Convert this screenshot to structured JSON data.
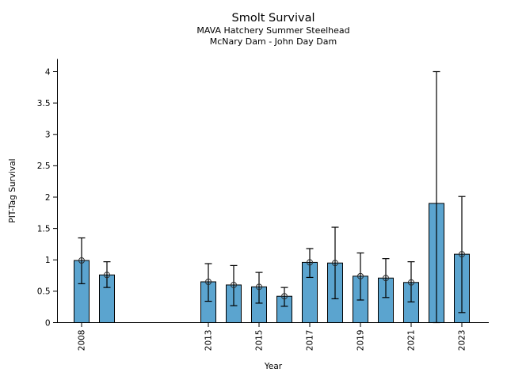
{
  "chart_data": {
    "type": "bar",
    "title": "Smolt Survival",
    "subtitle1": "MAVA Hatchery Summer Steelhead",
    "subtitle2": "McNary Dam - John Day Dam",
    "xlabel": "Year",
    "ylabel": "PIT-Tag Survival",
    "ylim": [
      0,
      4.2
    ],
    "xlim": [
      2007.05,
      2024.1
    ],
    "grid": false,
    "legend": "none",
    "bar_color": "#5BA4CF",
    "bar_edge_color": "#000000",
    "error_color": "#000000",
    "marker_style": "open-circle",
    "yticks": [
      {
        "value": 0,
        "label": "0"
      },
      {
        "value": 0.5,
        "label": "0.5"
      },
      {
        "value": 1,
        "label": "1"
      },
      {
        "value": 1.5,
        "label": "1.5"
      },
      {
        "value": 2,
        "label": "2"
      },
      {
        "value": 2.5,
        "label": "2.5"
      },
      {
        "value": 3,
        "label": "3"
      },
      {
        "value": 3.5,
        "label": "3.5"
      },
      {
        "value": 4,
        "label": "4"
      }
    ],
    "xticks": [
      {
        "value": 2008,
        "label": "2008"
      },
      {
        "value": 2013,
        "label": "2013"
      },
      {
        "value": 2015,
        "label": "2015"
      },
      {
        "value": 2017,
        "label": "2017"
      },
      {
        "value": 2019,
        "label": "2019"
      },
      {
        "value": 2021,
        "label": "2021"
      },
      {
        "value": 2023,
        "label": "2023"
      }
    ],
    "points": [
      {
        "year": 2008,
        "value": 0.99,
        "err_low": 0.62,
        "err_high": 1.35,
        "marker": true
      },
      {
        "year": 2009,
        "value": 0.76,
        "err_low": 0.56,
        "err_high": 0.97,
        "marker": true
      },
      {
        "year": 2013,
        "value": 0.65,
        "err_low": 0.34,
        "err_high": 0.94,
        "marker": true
      },
      {
        "year": 2014,
        "value": 0.6,
        "err_low": 0.27,
        "err_high": 0.91,
        "marker": true
      },
      {
        "year": 2015,
        "value": 0.57,
        "err_low": 0.31,
        "err_high": 0.8,
        "marker": true
      },
      {
        "year": 2016,
        "value": 0.42,
        "err_low": 0.26,
        "err_high": 0.56,
        "marker": true
      },
      {
        "year": 2017,
        "value": 0.96,
        "err_low": 0.72,
        "err_high": 1.18,
        "marker": true
      },
      {
        "year": 2018,
        "value": 0.95,
        "err_low": 0.38,
        "err_high": 1.52,
        "marker": true
      },
      {
        "year": 2019,
        "value": 0.74,
        "err_low": 0.36,
        "err_high": 1.11,
        "marker": true
      },
      {
        "year": 2020,
        "value": 0.71,
        "err_low": 0.4,
        "err_high": 1.02,
        "marker": true
      },
      {
        "year": 2021,
        "value": 0.64,
        "err_low": 0.33,
        "err_high": 0.97,
        "marker": true
      },
      {
        "year": 2022,
        "value": 1.9,
        "err_low": 0.0,
        "err_high": 4.0,
        "marker": false
      },
      {
        "year": 2023,
        "value": 1.09,
        "err_low": 0.16,
        "err_high": 2.01,
        "marker": true
      }
    ]
  }
}
